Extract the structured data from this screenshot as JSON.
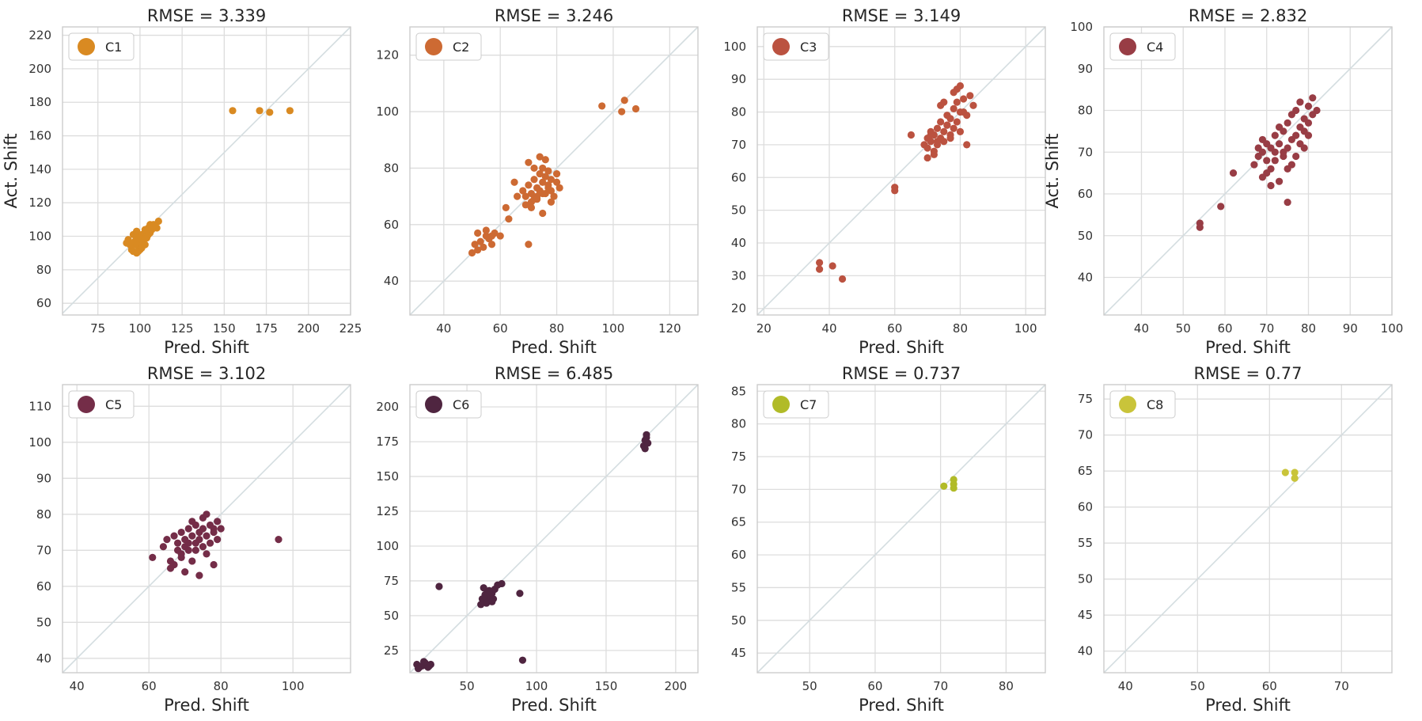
{
  "chart_data": [
    {
      "type": "scatter",
      "title": "RMSE = 3.339",
      "legend": "C1",
      "legend_position": "top-left",
      "color": "#d98a22",
      "xlabel": "Pred. Shift",
      "ylabel": "Act. Shift",
      "grid": true,
      "xlim": [
        54,
        225
      ],
      "ylim": [
        53,
        225
      ],
      "xticks": [
        75,
        100,
        125,
        150,
        175,
        200,
        225
      ],
      "yticks": [
        60,
        80,
        100,
        120,
        140,
        160,
        180,
        200,
        220
      ],
      "x": [
        155,
        171,
        177,
        189,
        92,
        95,
        97,
        98,
        99,
        100,
        100,
        101,
        101,
        102,
        102,
        103,
        103,
        104,
        104,
        105,
        105,
        106,
        106,
        107,
        108,
        110,
        111,
        96,
        98,
        100,
        103,
        105,
        93,
        97,
        99,
        101,
        104,
        107,
        94,
        96,
        98,
        102,
        104,
        106,
        109
      ],
      "y": [
        175,
        175,
        174,
        175,
        96,
        92,
        95,
        99,
        94,
        97,
        100,
        98,
        101,
        96,
        99,
        102,
        104,
        100,
        103,
        101,
        105,
        102,
        106,
        104,
        107,
        105,
        109,
        91,
        90,
        92,
        95,
        103,
        98,
        97,
        91,
        93,
        100,
        104,
        95,
        101,
        103,
        97,
        99,
        107,
        106
      ]
    },
    {
      "type": "scatter",
      "title": "RMSE = 3.246",
      "legend": "C2",
      "legend_position": "top-left",
      "color": "#cd6a33",
      "xlabel": "Pred. Shift",
      "ylabel": "",
      "grid": true,
      "xlim": [
        28,
        130
      ],
      "ylim": [
        28,
        130
      ],
      "xticks": [
        40,
        60,
        80,
        100,
        120
      ],
      "yticks": [
        40,
        60,
        80,
        100,
        120
      ],
      "x": [
        96,
        103,
        104,
        108,
        50,
        51,
        52,
        53,
        54,
        55,
        56,
        57,
        58,
        52,
        55,
        57,
        60,
        62,
        65,
        70,
        68,
        69,
        70,
        71,
        71,
        72,
        72,
        73,
        73,
        74,
        74,
        75,
        75,
        76,
        76,
        77,
        77,
        78,
        78,
        79,
        80,
        80,
        81,
        70,
        72,
        74,
        76,
        69,
        71,
        73,
        75,
        77,
        78,
        63,
        66,
        75
      ],
      "y": [
        102,
        100,
        104,
        101,
        50,
        53,
        51,
        54,
        52,
        56,
        55,
        53,
        57,
        57,
        58,
        56,
        56,
        66,
        75,
        53,
        72,
        70,
        74,
        68,
        71,
        76,
        69,
        73,
        70,
        78,
        72,
        75,
        80,
        71,
        77,
        74,
        79,
        76,
        72,
        70,
        75,
        78,
        73,
        82,
        80,
        84,
        83,
        67,
        66,
        69,
        71,
        73,
        68,
        62,
        70,
        64
      ]
    },
    {
      "type": "scatter",
      "title": "RMSE = 3.149",
      "legend": "C3",
      "legend_position": "top-left",
      "color": "#bb5240",
      "xlabel": "Pred. Shift",
      "ylabel": "",
      "grid": true,
      "xlim": [
        18,
        106
      ],
      "ylim": [
        18,
        106
      ],
      "xticks": [
        20,
        40,
        60,
        80,
        100
      ],
      "yticks": [
        20,
        30,
        40,
        50,
        60,
        70,
        80,
        90,
        100
      ],
      "x": [
        37,
        37,
        41,
        44,
        60,
        60,
        65,
        69,
        70,
        70,
        71,
        71,
        72,
        72,
        73,
        73,
        74,
        74,
        75,
        75,
        76,
        76,
        77,
        77,
        78,
        78,
        79,
        79,
        80,
        80,
        81,
        82,
        83,
        84,
        72,
        74,
        76,
        78,
        80,
        73,
        75,
        77,
        79,
        81,
        71,
        70,
        82
      ],
      "y": [
        32,
        34,
        33,
        29,
        56,
        57,
        73,
        70,
        72,
        69,
        71,
        74,
        73,
        68,
        70,
        75,
        72,
        77,
        71,
        74,
        76,
        79,
        73,
        78,
        75,
        81,
        77,
        83,
        80,
        74,
        84,
        79,
        85,
        82,
        67,
        82,
        76,
        86,
        88,
        71,
        83,
        72,
        87,
        80,
        73,
        66,
        70
      ]
    },
    {
      "type": "scatter",
      "title": "RMSE = 2.832",
      "legend": "C4",
      "legend_position": "top-left",
      "color": "#983d45",
      "xlabel": "Pred. Shift",
      "ylabel": "Act. Shift",
      "grid": true,
      "xlim": [
        31,
        100
      ],
      "ylim": [
        31,
        100
      ],
      "xticks": [
        40,
        50,
        60,
        70,
        80,
        90,
        100
      ],
      "yticks": [
        40,
        50,
        60,
        70,
        80,
        90,
        100
      ],
      "x": [
        54,
        54,
        59,
        62,
        67,
        68,
        68,
        69,
        69,
        70,
        70,
        71,
        71,
        72,
        72,
        73,
        73,
        74,
        74,
        75,
        75,
        76,
        76,
        77,
        77,
        78,
        78,
        79,
        79,
        80,
        80,
        81,
        81,
        82,
        70,
        72,
        74,
        76,
        78,
        80,
        69,
        71,
        73,
        75,
        77,
        79,
        75
      ],
      "y": [
        53,
        52,
        57,
        65,
        67,
        69,
        71,
        70,
        73,
        68,
        72,
        71,
        66,
        74,
        70,
        72,
        76,
        69,
        75,
        71,
        77,
        73,
        79,
        74,
        80,
        76,
        82,
        75,
        78,
        81,
        74,
        79,
        83,
        80,
        65,
        68,
        70,
        67,
        72,
        77,
        64,
        62,
        63,
        66,
        69,
        71,
        58
      ]
    },
    {
      "type": "scatter",
      "title": "RMSE = 3.102",
      "legend": "C5",
      "legend_position": "top-left",
      "color": "#742d48",
      "xlabel": "Pred. Shift",
      "ylabel": "",
      "grid": true,
      "xlim": [
        36,
        116
      ],
      "ylim": [
        36,
        116
      ],
      "xticks": [
        40,
        60,
        80,
        100
      ],
      "yticks": [
        40,
        50,
        60,
        70,
        80,
        90,
        100,
        110
      ],
      "x": [
        61,
        64,
        65,
        66,
        67,
        67,
        68,
        68,
        69,
        69,
        70,
        70,
        71,
        71,
        72,
        72,
        73,
        73,
        74,
        74,
        75,
        75,
        76,
        76,
        77,
        77,
        78,
        78,
        79,
        79,
        80,
        70,
        72,
        74,
        76,
        78,
        66,
        69,
        71,
        73,
        75,
        96
      ],
      "y": [
        68,
        71,
        73,
        67,
        66,
        74,
        70,
        72,
        69,
        75,
        71,
        73,
        76,
        70,
        74,
        78,
        72,
        77,
        75,
        73,
        79,
        76,
        74,
        80,
        77,
        72,
        76,
        75,
        78,
        73,
        76,
        64,
        67,
        63,
        69,
        66,
        65,
        68,
        72,
        70,
        71,
        73
      ]
    },
    {
      "type": "scatter",
      "title": "RMSE = 6.485",
      "legend": "C6",
      "legend_position": "top-left",
      "color": "#4f2540",
      "xlabel": "Pred. Shift",
      "ylabel": "",
      "grid": true,
      "xlim": [
        9,
        216
      ],
      "ylim": [
        9,
        216
      ],
      "xticks": [
        50,
        100,
        150,
        200
      ],
      "yticks": [
        25,
        50,
        75,
        100,
        125,
        150,
        175,
        200
      ],
      "x": [
        14,
        16,
        18,
        20,
        22,
        24,
        15,
        19,
        23,
        30,
        60,
        61,
        62,
        63,
        64,
        65,
        66,
        67,
        68,
        69,
        70,
        62,
        64,
        66,
        68,
        72,
        75,
        88,
        90,
        177,
        178,
        179,
        180,
        178,
        179
      ],
      "y": [
        15,
        13,
        14,
        16,
        13,
        15,
        12,
        17,
        14,
        71,
        58,
        62,
        60,
        65,
        63,
        67,
        61,
        64,
        66,
        62,
        69,
        70,
        59,
        68,
        60,
        72,
        73,
        66,
        18,
        172,
        176,
        180,
        174,
        170,
        178
      ]
    },
    {
      "type": "scatter",
      "title": "RMSE = 0.737",
      "legend": "C7",
      "legend_position": "top-left",
      "color": "#b1bb28",
      "xlabel": "Pred. Shift",
      "ylabel": "",
      "grid": true,
      "xlim": [
        42,
        86
      ],
      "ylim": [
        42,
        86
      ],
      "xticks": [
        50,
        60,
        70,
        80
      ],
      "yticks": [
        45,
        50,
        55,
        60,
        65,
        70,
        75,
        80,
        85
      ],
      "x": [
        70.5,
        72.0,
        72.0,
        72.0
      ],
      "y": [
        70.5,
        71.5,
        70.8,
        70.2
      ]
    },
    {
      "type": "scatter",
      "title": "RMSE = 0.77",
      "legend": "C8",
      "legend_position": "top-left",
      "color": "#c9c43a",
      "xlabel": "Pred. Shift",
      "ylabel": "",
      "grid": true,
      "xlim": [
        37,
        77
      ],
      "ylim": [
        37,
        77
      ],
      "xticks": [
        40,
        50,
        60,
        70
      ],
      "yticks": [
        40,
        45,
        50,
        55,
        60,
        65,
        70,
        75
      ],
      "x": [
        62.2,
        63.5,
        63.5
      ],
      "y": [
        64.8,
        64.8,
        64.0
      ]
    }
  ]
}
